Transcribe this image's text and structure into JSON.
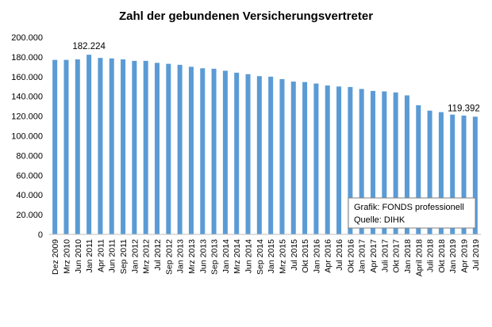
{
  "chart_data": {
    "type": "bar",
    "title": "Zahl der gebundenen Versicherungsvertreter",
    "xlabel": "",
    "ylabel": "",
    "ylim": [
      0,
      200000
    ],
    "yticks": [
      0,
      20000,
      40000,
      60000,
      80000,
      100000,
      120000,
      140000,
      160000,
      180000,
      200000
    ],
    "ytick_labels": [
      "0",
      "20.000",
      "40.000",
      "60.000",
      "80.000",
      "100.000",
      "120.000",
      "140.000",
      "160.000",
      "180.000",
      "200.000"
    ],
    "grid": false,
    "bar_color": "#5b9bd5",
    "categories": [
      "Dez 2009",
      "Mrz 2010",
      "Jun 2010",
      "Jan 2011",
      "Apr 2011",
      "Jun 2011",
      "Sep 2011",
      "Jan 2012",
      "Mrz 2012",
      "Jul 2012",
      "Sep 2012",
      "Jan 2013",
      "Mrz 2013",
      "Jun 2013",
      "Sep 2013",
      "Jan 2014",
      "Mrz 2014",
      "Jun 2014",
      "Sep 2014",
      "Jan 2015",
      "Mrz 2015",
      "Jul 2015",
      "Okt 2015",
      "Jan 2016",
      "Apr 2016",
      "Jul 2016",
      "Okt 2016",
      "Jan 2017",
      "Apr 2017",
      "Juli 2017",
      "Okt 2017",
      "Jan 2018",
      "April 2018",
      "Juli 2018",
      "Okt 2018",
      "Jan 2019",
      "Apr 2019",
      "Jul 2019"
    ],
    "values": [
      177000,
      177000,
      177500,
      182224,
      179000,
      178500,
      177500,
      176000,
      176000,
      174000,
      173000,
      172000,
      170000,
      168500,
      168000,
      166000,
      164000,
      162500,
      160500,
      160000,
      157500,
      155000,
      154500,
      153000,
      151000,
      150000,
      149500,
      147500,
      145500,
      145000,
      144000,
      141000,
      131000,
      125500,
      124000,
      121500,
      120500,
      119392
    ],
    "data_labels": [
      {
        "category": "Jan 2011",
        "text": "182.224"
      },
      {
        "category": "Jul 2019",
        "text": "119.392"
      }
    ],
    "annotation": [
      "Grafik: FONDS professionell",
      "Quelle: DIHK"
    ]
  }
}
